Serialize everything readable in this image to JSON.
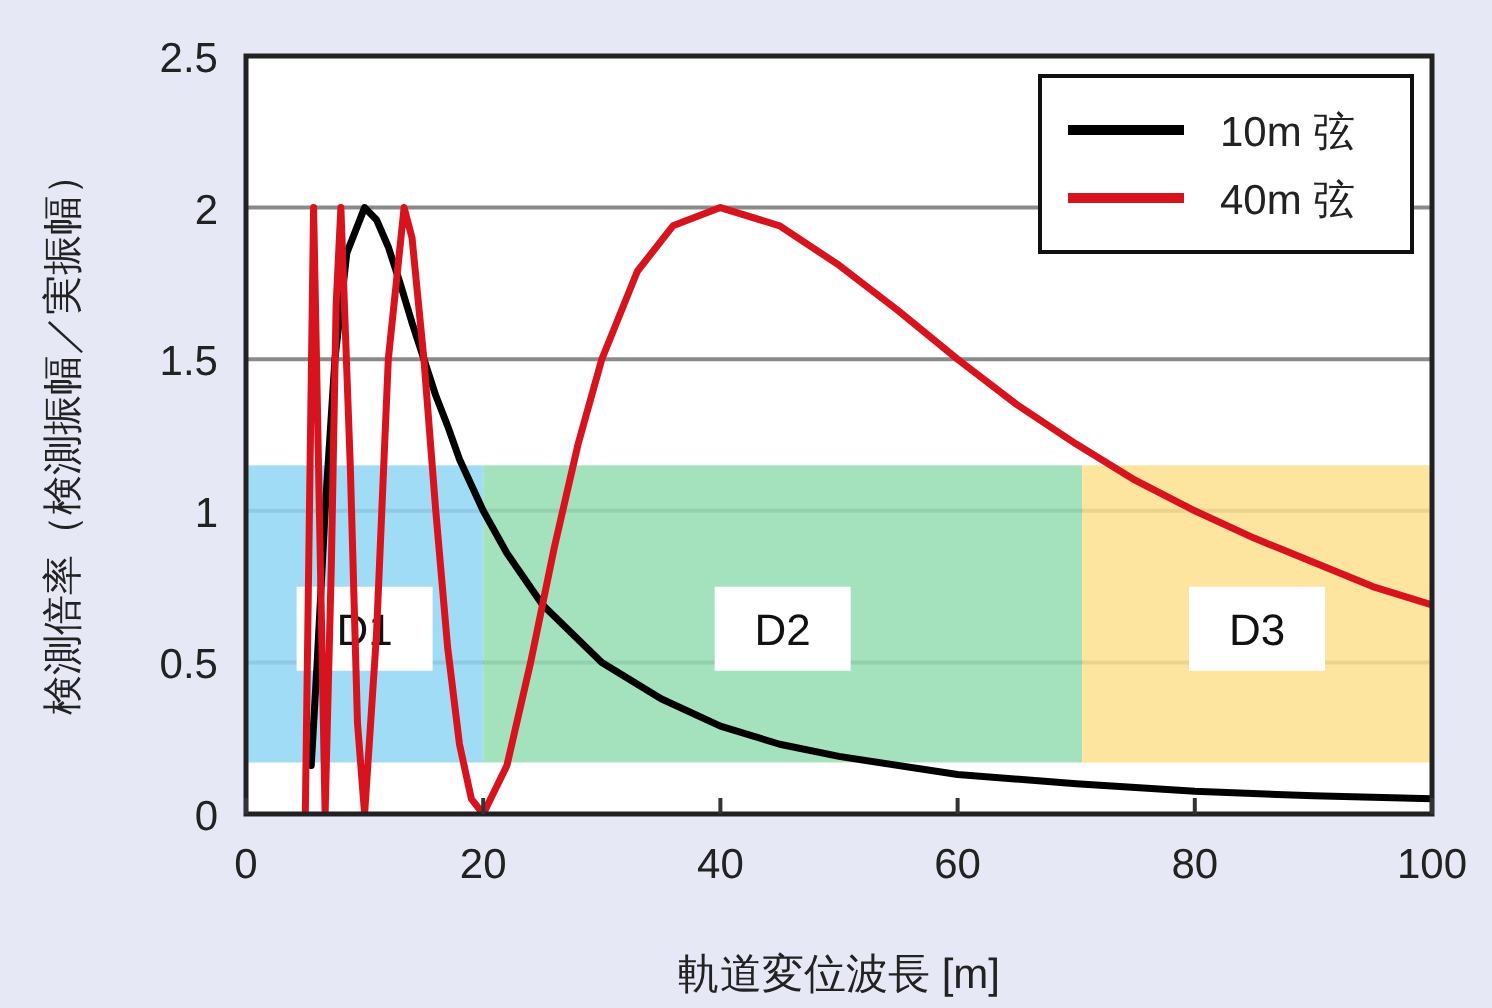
{
  "chart_data": {
    "type": "line",
    "xlabel": "軌道変位波長 [m]",
    "ylabel": "検測倍率（検測振幅／実振幅）",
    "xlim": [
      0,
      100
    ],
    "ylim": [
      0,
      2.5
    ],
    "xticks": [
      0,
      20,
      40,
      60,
      80,
      100
    ],
    "yticks": [
      0,
      0.5,
      1,
      1.5,
      2,
      2.5
    ],
    "grid": "y",
    "legend": "top right",
    "series": [
      {
        "name": "10m 弦",
        "color": "#000000",
        "x": [
          5.5,
          6,
          6.67,
          7.5,
          8.5,
          10,
          11,
          12,
          13,
          14,
          15,
          16,
          17,
          18,
          20,
          22,
          25,
          30,
          35,
          40,
          45,
          50,
          60,
          70,
          80,
          90,
          100
        ],
        "values": [
          0.16,
          0.5,
          1.0,
          1.5,
          1.85,
          2.0,
          1.96,
          1.87,
          1.75,
          1.62,
          1.5,
          1.38,
          1.28,
          1.17,
          1.0,
          0.86,
          0.69,
          0.5,
          0.38,
          0.29,
          0.23,
          0.19,
          0.13,
          0.1,
          0.075,
          0.06,
          0.05
        ]
      },
      {
        "name": "40m 弦",
        "color": "#d7141e",
        "x": [
          5.0,
          5.3,
          5.7,
          6.1,
          6.67,
          7.2,
          7.6,
          8,
          8.8,
          9.4,
          10,
          11,
          12,
          13.33,
          14,
          15,
          16,
          17,
          18,
          19,
          20,
          22,
          24,
          26,
          28,
          30,
          33,
          36,
          40,
          45,
          50,
          55,
          60,
          65,
          70,
          75,
          80,
          85,
          90,
          95,
          100
        ],
        "values": [
          0,
          0.86,
          2.0,
          1.18,
          0,
          0.83,
          1.68,
          2.0,
          1.14,
          0.3,
          0,
          0.59,
          1.5,
          2.0,
          1.9,
          1.5,
          1.0,
          0.55,
          0.23,
          0.05,
          0,
          0.16,
          0.5,
          0.88,
          1.22,
          1.5,
          1.79,
          1.94,
          2.0,
          1.94,
          1.81,
          1.66,
          1.5,
          1.35,
          1.22,
          1.1,
          1.0,
          0.91,
          0.83,
          0.75,
          0.69
        ]
      }
    ],
    "bands": [
      {
        "axis": "x",
        "from": 0,
        "to": 20,
        "label": "D1",
        "color": "#8fd6f5"
      },
      {
        "axis": "x",
        "from": 20,
        "to": 70.5,
        "label": "D2",
        "color": "#94dcb2"
      },
      {
        "axis": "x",
        "from": 70.5,
        "to": 100,
        "label": "D3",
        "color": "#fde08f"
      }
    ]
  }
}
